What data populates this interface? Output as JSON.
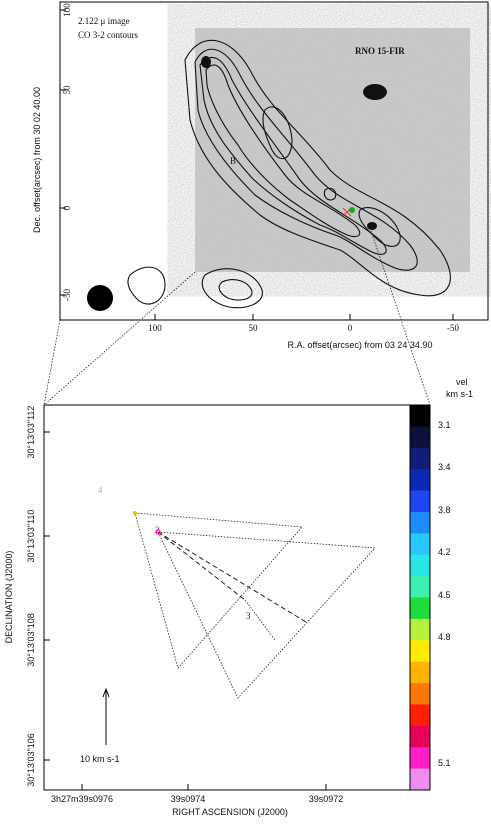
{
  "top_panel": {
    "annotation_1": "2.122 μ image",
    "annotation_2": "CO 3-2 contours",
    "source": "RNO 15-FIR",
    "label_b": "B",
    "yticks": [
      "100",
      "50",
      "0",
      "-50"
    ],
    "xticks": [
      "100",
      "50",
      "0",
      "-50"
    ],
    "xlabel": "R.A. offset(arcsec) from 03 24 34.90",
    "ylabel": "Dec. offset(arcsec) from 30 02 40.00"
  },
  "bottom_panel": {
    "yticks": [
      "30°13'03\"112",
      "30°13'03\"110",
      "30°13'03\"108",
      "30°13'03\"106"
    ],
    "xticks": [
      "3h27m39s0976",
      "39s0974",
      "39s0972"
    ],
    "xlabel": "RIGHT ASCENSION (J2000)",
    "ylabel": "DECLINATION (J2000)",
    "labels": [
      "4",
      "2",
      "3"
    ],
    "scale_bar": "10  km s-1"
  },
  "colorbar": {
    "title_1": "vel",
    "title_2": "km s-1",
    "ticks": [
      "3.1",
      "3.4",
      "3.8",
      "4.2",
      "4.5",
      "4.8",
      "5.1"
    ],
    "colors": [
      "#000000",
      "#0a0f3c",
      "#101c78",
      "#0a28b4",
      "#1e46f0",
      "#1e8cff",
      "#28c8ff",
      "#28e6e6",
      "#3cf0b4",
      "#1edc3c",
      "#b4f03c",
      "#ffeb00",
      "#ffb400",
      "#ff7800",
      "#ff1e00",
      "#e6005a",
      "#ff1ec8",
      "#f08cf0"
    ]
  }
}
